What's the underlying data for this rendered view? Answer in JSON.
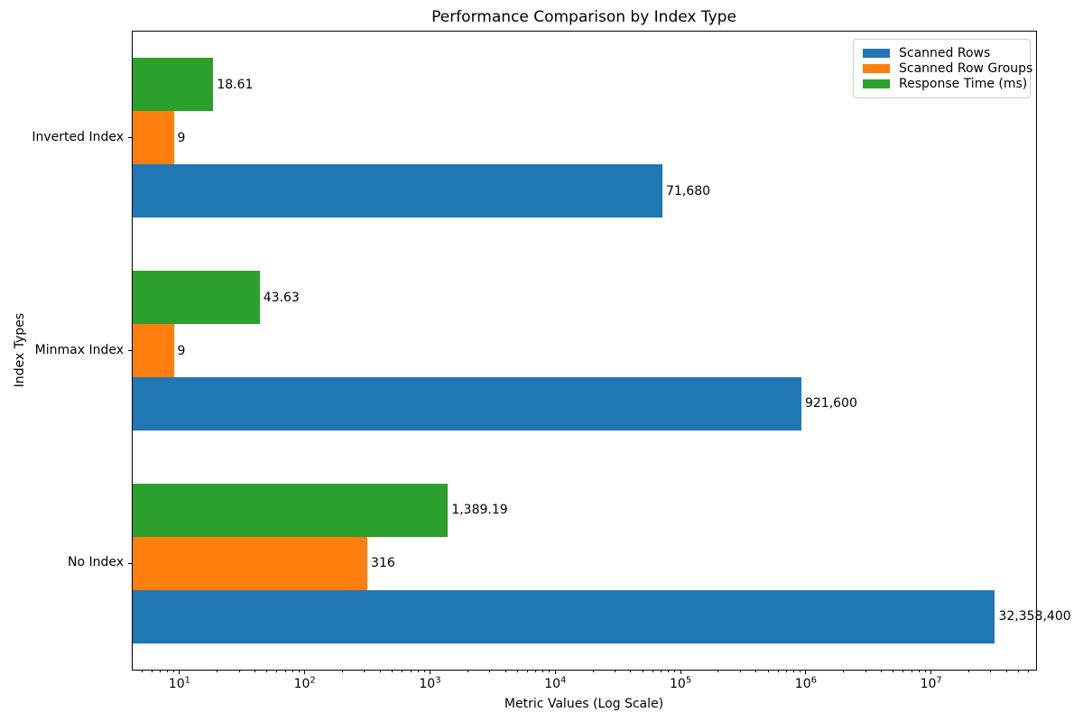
{
  "figure": {
    "background": "#ffffff",
    "axis_color": "#000000",
    "legend_border_color": "#cccccc"
  },
  "chart_data": {
    "type": "bar",
    "orientation": "horizontal",
    "title": "Performance Comparison by Index Type",
    "xlabel": "Metric Values (Log Scale)",
    "ylabel": "Index Types",
    "x_scale": "log",
    "xlim_log10": [
      0.626,
      7.838
    ],
    "x_major_ticks": [
      10,
      100,
      1000,
      10000,
      100000,
      1000000,
      10000000
    ],
    "x_major_tick_display": [
      "10^1",
      "10^2",
      "10^3",
      "10^4",
      "10^5",
      "10^6",
      "10^7"
    ],
    "grid": false,
    "legend_position": "upper right",
    "categories": [
      "No Index",
      "Minmax Index",
      "Inverted Index"
    ],
    "categories_note": "listed bottom-to-top as drawn on the y axis",
    "series": [
      {
        "name": "Scanned Rows",
        "color": "#1f77b4",
        "values": [
          32358400,
          921600,
          71680
        ],
        "labels": [
          "32,358,400",
          "921,600",
          "71,680"
        ]
      },
      {
        "name": "Scanned Row Groups",
        "color": "#ff7f0e",
        "values": [
          316,
          9,
          9
        ],
        "labels": [
          "316",
          "9",
          "9"
        ]
      },
      {
        "name": "Response Time (ms)",
        "color": "#2ca02c",
        "values": [
          1389.19,
          43.63,
          18.61
        ],
        "labels": [
          "1,389.19",
          "43.63",
          "18.61"
        ]
      }
    ]
  }
}
